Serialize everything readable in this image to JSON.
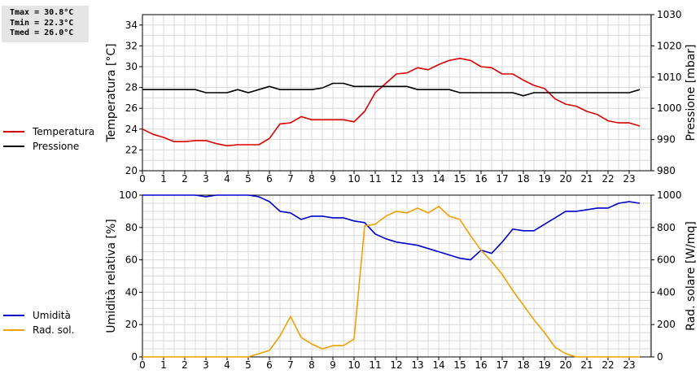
{
  "stats": [
    "Tmax = 30.8°C",
    "Tmin = 22.3°C",
    "Tmed = 26.0°C"
  ],
  "chart_data": [
    {
      "type": "line",
      "ylabel_left": "Temperatura [°C]",
      "ylabel_right": "Pressione [mbar]",
      "ylim_left": [
        20,
        35
      ],
      "yticks_left": [
        20,
        22,
        24,
        26,
        28,
        30,
        32,
        34
      ],
      "ylim_right": [
        980,
        1030
      ],
      "yticks_right": [
        980,
        990,
        1000,
        1010,
        1020,
        1030
      ],
      "xlim": [
        0,
        24
      ],
      "xticks": [
        0,
        1,
        2,
        3,
        4,
        5,
        6,
        7,
        8,
        9,
        10,
        11,
        12,
        13,
        14,
        15,
        16,
        17,
        18,
        19,
        20,
        21,
        22,
        23
      ],
      "grid": true,
      "legend_position": "left",
      "series": [
        {
          "name": "Temperatura",
          "color": "#dd0000",
          "axis": "left",
          "x": [
            0,
            0.5,
            1,
            1.5,
            2,
            2.5,
            3,
            3.5,
            4,
            4.5,
            5,
            5.5,
            6,
            6.5,
            7,
            7.5,
            8,
            8.5,
            9,
            9.5,
            10,
            10.5,
            11,
            11.5,
            12,
            12.5,
            13,
            13.5,
            14,
            14.5,
            15,
            15.5,
            16,
            16.5,
            17,
            17.5,
            18,
            18.5,
            19,
            19.5,
            20,
            20.5,
            21,
            21.5,
            22,
            22.5,
            23,
            23.5
          ],
          "y": [
            24.0,
            23.5,
            23.2,
            22.8,
            22.8,
            22.9,
            22.9,
            22.6,
            22.4,
            22.5,
            22.5,
            22.5,
            23.1,
            24.5,
            24.6,
            25.2,
            24.9,
            24.9,
            24.9,
            24.9,
            24.7,
            25.7,
            27.5,
            28.4,
            29.3,
            29.4,
            29.9,
            29.7,
            30.2,
            30.6,
            30.8,
            30.6,
            30.0,
            29.9,
            29.3,
            29.3,
            28.7,
            28.2,
            27.9,
            26.9,
            26.4,
            26.2,
            25.7,
            25.4,
            24.8,
            24.6,
            24.6,
            24.3
          ]
        },
        {
          "name": "Pressione",
          "color": "#000000",
          "axis": "right",
          "x": [
            0,
            0.5,
            1,
            1.5,
            2,
            2.5,
            3,
            3.5,
            4,
            4.5,
            5,
            5.5,
            6,
            6.5,
            7,
            7.5,
            8,
            8.5,
            9,
            9.5,
            10,
            10.5,
            11,
            11.5,
            12,
            12.5,
            13,
            13.5,
            14,
            14.5,
            15,
            15.5,
            16,
            16.5,
            17,
            17.5,
            18,
            18.5,
            19,
            19.5,
            20,
            20.5,
            21,
            21.5,
            22,
            22.5,
            23,
            23.5
          ],
          "y": [
            1006,
            1006,
            1006,
            1006,
            1006,
            1006,
            1005,
            1005,
            1005,
            1006,
            1005,
            1006,
            1007,
            1006,
            1006,
            1006,
            1006,
            1006.5,
            1008,
            1008,
            1007,
            1007,
            1007,
            1007,
            1007,
            1007,
            1006,
            1006,
            1006,
            1006,
            1005,
            1005,
            1005,
            1005,
            1005,
            1005,
            1004,
            1005,
            1005,
            1005,
            1005,
            1005,
            1005,
            1005,
            1005,
            1005,
            1005,
            1006
          ]
        }
      ]
    },
    {
      "type": "line",
      "ylabel_left": "Umidità relativa [%]",
      "ylabel_right": "Rad. solare [W/mq]",
      "ylim_left": [
        0,
        100
      ],
      "yticks_left": [
        0,
        20,
        40,
        60,
        80,
        100
      ],
      "ylim_right": [
        0,
        1000
      ],
      "yticks_right": [
        0,
        200,
        400,
        600,
        800,
        1000
      ],
      "xlim": [
        0,
        24
      ],
      "xticks": [
        0,
        1,
        2,
        3,
        4,
        5,
        6,
        7,
        8,
        9,
        10,
        11,
        12,
        13,
        14,
        15,
        16,
        17,
        18,
        19,
        20,
        21,
        22,
        23
      ],
      "grid": true,
      "legend_position": "left",
      "series": [
        {
          "name": "Umidità",
          "color": "#0000cc",
          "axis": "left",
          "x": [
            0,
            0.5,
            1,
            1.5,
            2,
            2.5,
            3,
            3.5,
            4,
            4.5,
            5,
            5.5,
            6,
            6.5,
            7,
            7.5,
            8,
            8.5,
            9,
            9.5,
            10,
            10.5,
            11,
            11.5,
            12,
            12.5,
            13,
            13.5,
            14,
            14.5,
            15,
            15.5,
            16,
            16.5,
            17,
            17.5,
            18,
            18.5,
            19,
            19.5,
            20,
            20.5,
            21,
            21.5,
            22,
            22.5,
            23,
            23.5
          ],
          "y": [
            100,
            100,
            100,
            100,
            100,
            100,
            99,
            100,
            100,
            100,
            100,
            99,
            96,
            90,
            89,
            85,
            87,
            87,
            86,
            86,
            84,
            83,
            76,
            73,
            71,
            70,
            69,
            67,
            65,
            63,
            61,
            60,
            66,
            64,
            71,
            79,
            78,
            78,
            82,
            86,
            90,
            90,
            91,
            92,
            92,
            95,
            96,
            95
          ]
        },
        {
          "name": "Rad. sol.",
          "color": "#f0a000",
          "axis": "right",
          "x": [
            0,
            0.5,
            1,
            1.5,
            2,
            2.5,
            3,
            3.5,
            4,
            4.5,
            5,
            5.5,
            6,
            6.5,
            7,
            7.5,
            8,
            8.5,
            9,
            9.5,
            10,
            10.5,
            11,
            11.5,
            12,
            12.5,
            13,
            13.5,
            14,
            14.5,
            15,
            15.5,
            16,
            16.5,
            17,
            17.5,
            18,
            18.5,
            19,
            19.5,
            20,
            20.5,
            21,
            21.5,
            22,
            22.5,
            23,
            23.5
          ],
          "y": [
            0,
            0,
            0,
            0,
            0,
            0,
            0,
            0,
            0,
            0,
            0,
            20,
            40,
            130,
            250,
            120,
            80,
            50,
            70,
            70,
            110,
            810,
            820,
            870,
            900,
            890,
            920,
            890,
            930,
            870,
            850,
            750,
            660,
            590,
            510,
            410,
            320,
            230,
            150,
            60,
            20,
            0,
            0,
            0,
            0,
            0,
            0,
            0
          ]
        }
      ]
    }
  ]
}
